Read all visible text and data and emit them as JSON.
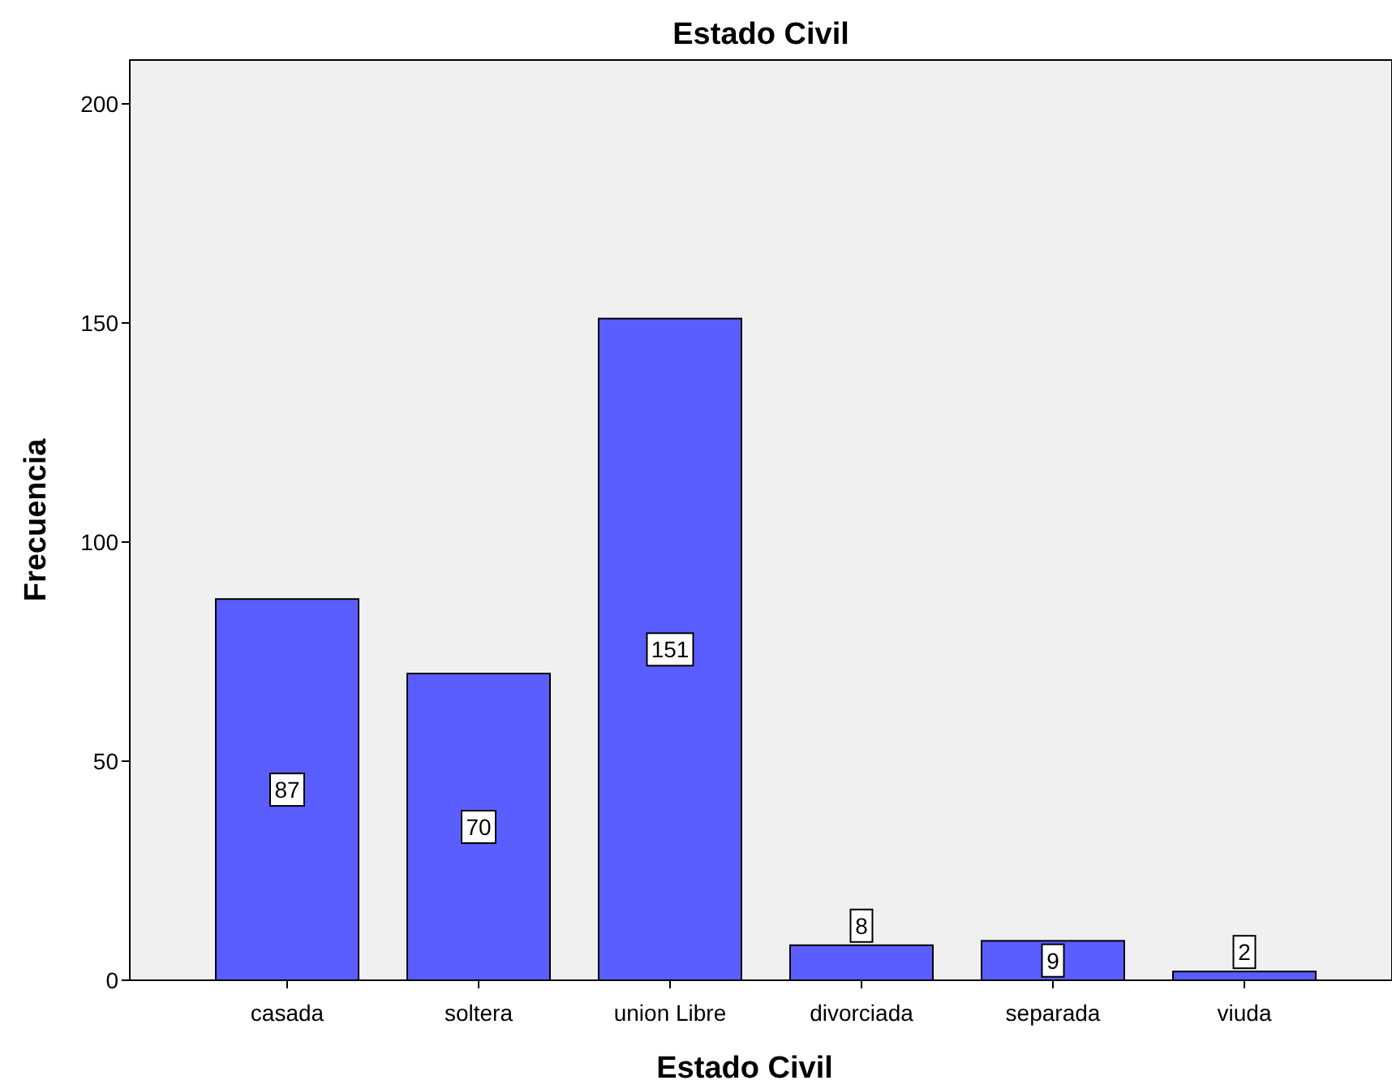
{
  "chart_data": {
    "type": "bar",
    "title": "Estado Civil",
    "xlabel": "Estado Civil",
    "ylabel": "Frecuencia",
    "categories": [
      "casada",
      "soltera",
      "union Libre",
      "divorciada",
      "separada",
      "viuda"
    ],
    "values": [
      87,
      70,
      151,
      8,
      9,
      2
    ],
    "color": "#5b5eff",
    "ylim": [
      0,
      210
    ],
    "yticks": [
      0,
      50,
      100,
      150,
      200
    ],
    "grid": false,
    "data_labels": true
  }
}
